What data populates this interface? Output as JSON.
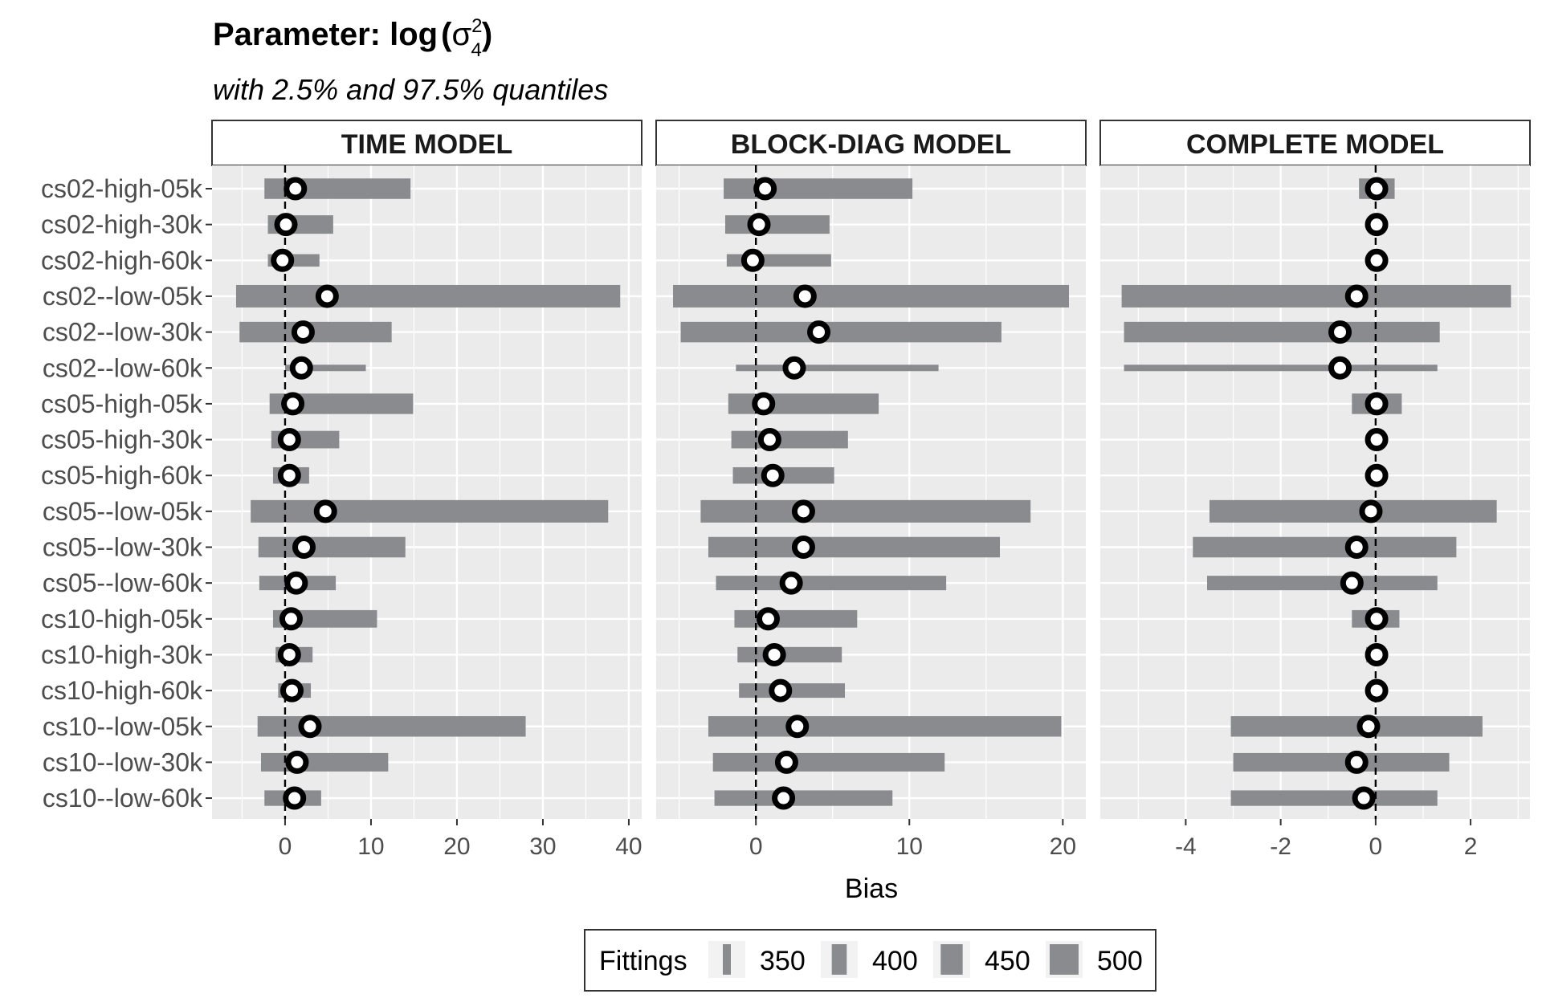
{
  "chart_data": {
    "type": "bar",
    "title_prefix": "Parameter: log",
    "title_math": "σ",
    "title_sup": "2",
    "title_sub": "4",
    "subtitle": "with 2.5% and 97.5% quantiles",
    "xlabel": "Bias",
    "categories": [
      "cs02-high-05k",
      "cs02-high-30k",
      "cs02-high-60k",
      "cs02--low-05k",
      "cs02--low-30k",
      "cs02--low-60k",
      "cs05-high-05k",
      "cs05-high-30k",
      "cs05-high-60k",
      "cs05--low-05k",
      "cs05--low-30k",
      "cs05--low-60k",
      "cs10-high-05k",
      "cs10-high-30k",
      "cs10-high-60k",
      "cs10--low-05k",
      "cs10--low-30k",
      "cs10--low-60k"
    ],
    "fittings": [
      480,
      460,
      400,
      500,
      480,
      340,
      480,
      450,
      440,
      500,
      480,
      420,
      450,
      430,
      420,
      480,
      460,
      430
    ],
    "panels": [
      {
        "name": "TIME MODEL",
        "xlim": [
          -8.5,
          41.5
        ],
        "ticks": [
          0,
          10,
          20,
          30,
          40
        ],
        "low": [
          -2.4,
          -2.0,
          -2.0,
          -5.7,
          -5.3,
          0.0,
          -1.8,
          -1.6,
          -1.4,
          -4.0,
          -3.1,
          -3.0,
          -1.4,
          -1.1,
          -0.8,
          -3.2,
          -2.8,
          -2.4
        ],
        "high": [
          14.6,
          5.6,
          4.0,
          39.0,
          12.4,
          9.4,
          14.9,
          6.3,
          2.8,
          37.6,
          14.0,
          5.9,
          10.7,
          3.2,
          3.0,
          28.0,
          12.0,
          4.2
        ],
        "point": [
          1.2,
          0.1,
          -0.3,
          4.9,
          2.1,
          1.9,
          0.9,
          0.5,
          0.5,
          4.7,
          2.2,
          1.3,
          0.7,
          0.5,
          0.8,
          2.9,
          1.4,
          1.1
        ]
      },
      {
        "name": "BLOCK-DIAG MODEL",
        "xlim": [
          -6.5,
          21.5
        ],
        "ticks": [
          0,
          10,
          20
        ],
        "low": [
          -2.1,
          -2.0,
          -1.9,
          -5.4,
          -4.9,
          -1.3,
          -1.8,
          -1.6,
          -1.5,
          -3.6,
          -3.1,
          -2.6,
          -1.4,
          -1.2,
          -1.1,
          -3.1,
          -2.8,
          -2.7
        ],
        "high": [
          10.2,
          4.8,
          4.9,
          20.4,
          16.0,
          11.9,
          8.0,
          6.0,
          5.1,
          17.9,
          15.9,
          12.4,
          6.6,
          5.6,
          5.8,
          19.9,
          12.3,
          8.9
        ],
        "point": [
          0.6,
          0.2,
          -0.2,
          3.2,
          4.1,
          2.5,
          0.5,
          0.9,
          1.1,
          3.1,
          3.1,
          2.3,
          0.8,
          1.2,
          1.6,
          2.7,
          2.0,
          1.8
        ]
      },
      {
        "name": "COMPLETE MODEL",
        "xlim": [
          -5.8,
          3.25
        ],
        "ticks": [
          -4,
          -2,
          0,
          2
        ],
        "tick_labels": [
          "-4",
          "-2",
          "0",
          "2"
        ],
        "low": [
          -0.35,
          -0.1,
          -0.1,
          -5.35,
          -5.3,
          -5.3,
          -0.5,
          -0.1,
          -0.1,
          -3.5,
          -3.85,
          -3.55,
          -0.5,
          -0.2,
          -0.15,
          -3.05,
          -3.0,
          -3.05
        ],
        "high": [
          0.4,
          0.1,
          0.1,
          2.85,
          1.35,
          1.3,
          0.55,
          0.1,
          0.1,
          2.55,
          1.7,
          1.3,
          0.5,
          0.15,
          0.15,
          2.25,
          1.55,
          1.3
        ],
        "point": [
          0.02,
          0.02,
          0.02,
          -0.4,
          -0.75,
          -0.75,
          0.02,
          0.02,
          0.02,
          -0.1,
          -0.4,
          -0.5,
          0.02,
          0.02,
          0.02,
          -0.15,
          -0.4,
          -0.25
        ]
      }
    ],
    "reference_line": 0,
    "grid": true,
    "legend": {
      "title": "Fittings",
      "placement": "bottom",
      "items": [
        {
          "label": "350",
          "value": 350
        },
        {
          "label": "400",
          "value": 400
        },
        {
          "label": "450",
          "value": 450
        },
        {
          "label": "500",
          "value": 500
        }
      ]
    },
    "colors": {
      "bar": "#898b8e",
      "panel_bg": "#ebebeb",
      "grid": "#ffffff",
      "point_fill": "#ffffff",
      "point_stroke": "#000000"
    }
  }
}
